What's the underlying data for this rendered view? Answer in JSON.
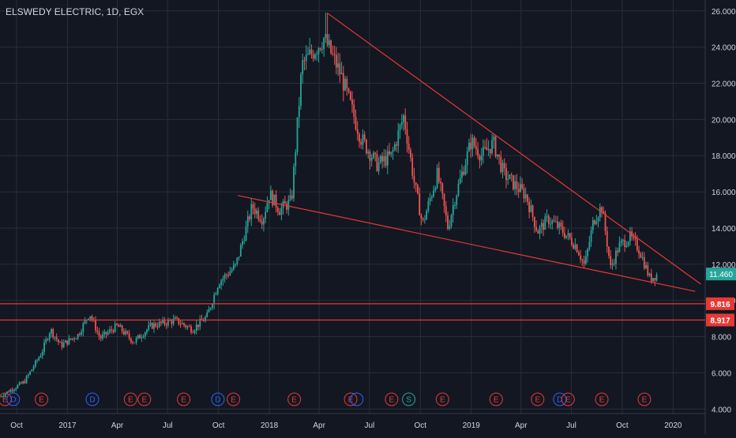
{
  "header": {
    "title": "ELSWEDY ELECTRIC, 1D, EGX"
  },
  "colors": {
    "background": "#131722",
    "grid": "#2a2e39",
    "axis_text": "#d1d4dc",
    "up": "#26a69a",
    "down": "#ef5350",
    "trendline": "#e53935",
    "price_badge": "#26a69a",
    "level_badge": "#e53935"
  },
  "chart_data": {
    "type": "candlestick",
    "x_start": "2016-09-01",
    "x_end": "2020-02-28",
    "ylim": [
      3.75,
      26.6
    ],
    "y_scale": "linear",
    "yticks": [
      "4.000",
      "6.000",
      "8.000",
      "10.000",
      "12.000",
      "14.000",
      "16.000",
      "18.000",
      "20.000",
      "22.000",
      "24.000",
      "26.000"
    ],
    "ytick_values": [
      4,
      6,
      8,
      10,
      12,
      14,
      16,
      18,
      20,
      22,
      24,
      26
    ],
    "xticks": [
      {
        "date": "2016-10-01",
        "label": "Oct"
      },
      {
        "date": "2017-01-01",
        "label": "2017"
      },
      {
        "date": "2017-04-01",
        "label": "Apr"
      },
      {
        "date": "2017-07-01",
        "label": "Jul"
      },
      {
        "date": "2017-10-01",
        "label": "Oct"
      },
      {
        "date": "2018-01-01",
        "label": "2018"
      },
      {
        "date": "2018-04-01",
        "label": "Apr"
      },
      {
        "date": "2018-07-01",
        "label": "Jul"
      },
      {
        "date": "2018-10-01",
        "label": "Oct"
      },
      {
        "date": "2019-01-01",
        "label": "2019"
      },
      {
        "date": "2019-04-01",
        "label": "Apr"
      },
      {
        "date": "2019-07-01",
        "label": "Jul"
      },
      {
        "date": "2019-10-01",
        "label": "Oct"
      },
      {
        "date": "2020-01-01",
        "label": "2020"
      }
    ],
    "price_path": [
      [
        "2016-09-01",
        4.7
      ],
      [
        "2016-10-15",
        5.5
      ],
      [
        "2016-11-15",
        7.1
      ],
      [
        "2016-12-01",
        8.4
      ],
      [
        "2016-12-20",
        7.5
      ],
      [
        "2017-01-20",
        8.1
      ],
      [
        "2017-02-10",
        9.3
      ],
      [
        "2017-03-01",
        7.9
      ],
      [
        "2017-04-01",
        8.6
      ],
      [
        "2017-05-01",
        7.7
      ],
      [
        "2017-06-01",
        8.6
      ],
      [
        "2017-07-15",
        8.9
      ],
      [
        "2017-08-15",
        8.4
      ],
      [
        "2017-09-10",
        9.1
      ],
      [
        "2017-10-01",
        11.0
      ],
      [
        "2017-11-01",
        11.9
      ],
      [
        "2017-12-01",
        15.2
      ],
      [
        "2017-12-20",
        14.5
      ],
      [
        "2018-01-01",
        15.9
      ],
      [
        "2018-01-20",
        15.0
      ],
      [
        "2018-02-10",
        15.5
      ],
      [
        "2018-03-01",
        23.0
      ],
      [
        "2018-04-10",
        24.5
      ],
      [
        "2018-05-10",
        22.5
      ],
      [
        "2018-06-15",
        19.0
      ],
      [
        "2018-07-15",
        17.5
      ],
      [
        "2018-08-10",
        18.0
      ],
      [
        "2018-09-01",
        20.2
      ],
      [
        "2018-09-20",
        16.5
      ],
      [
        "2018-10-05",
        14.2
      ],
      [
        "2018-11-01",
        17.0
      ],
      [
        "2018-11-20",
        14.0
      ],
      [
        "2018-12-01",
        15.5
      ],
      [
        "2019-01-01",
        18.8
      ],
      [
        "2019-01-20",
        18.0
      ],
      [
        "2019-02-10",
        18.7
      ],
      [
        "2019-03-01",
        17.0
      ],
      [
        "2019-03-20",
        16.4
      ],
      [
        "2019-04-10",
        15.8
      ],
      [
        "2019-05-01",
        13.8
      ],
      [
        "2019-05-20",
        14.5
      ],
      [
        "2019-06-10",
        14.0
      ],
      [
        "2019-07-10",
        13.0
      ],
      [
        "2019-07-25",
        11.9
      ],
      [
        "2019-08-10",
        14.4
      ],
      [
        "2019-08-25",
        15.2
      ],
      [
        "2019-09-10",
        11.8
      ],
      [
        "2019-09-25",
        13.0
      ],
      [
        "2019-10-15",
        13.5
      ],
      [
        "2019-11-01",
        12.8
      ],
      [
        "2019-11-20",
        11.2
      ],
      [
        "2019-12-05",
        11.46
      ]
    ],
    "peak": {
      "date": "2018-04-15",
      "value": 25.9
    },
    "trendlines": [
      {
        "from": [
          "2018-04-17",
          25.85
        ],
        "to": [
          "2020-02-20",
          10.9
        ]
      },
      {
        "from": [
          "2017-11-05",
          15.8
        ],
        "to": [
          "2020-02-10",
          10.5
        ]
      }
    ],
    "horizontal_levels": [
      {
        "value": 9.816,
        "label": "9.816"
      },
      {
        "value": 8.917,
        "label": "8.917"
      }
    ],
    "last_price": {
      "value": 11.46,
      "label": "11.460"
    },
    "events": [
      {
        "date": "2016-09-10",
        "label": "E",
        "kind": "earnings"
      },
      {
        "date": "2016-09-25",
        "label": "D",
        "kind": "dividend"
      },
      {
        "date": "2016-11-15",
        "label": "E",
        "kind": "earnings"
      },
      {
        "date": "2017-02-15",
        "label": "D",
        "kind": "dividend"
      },
      {
        "date": "2017-04-25",
        "label": "E",
        "kind": "earnings"
      },
      {
        "date": "2017-05-20",
        "label": "E",
        "kind": "earnings"
      },
      {
        "date": "2017-07-30",
        "label": "E",
        "kind": "earnings"
      },
      {
        "date": "2017-09-30",
        "label": "D",
        "kind": "dividend"
      },
      {
        "date": "2017-10-28",
        "label": "E",
        "kind": "earnings"
      },
      {
        "date": "2018-02-15",
        "label": "E",
        "kind": "earnings"
      },
      {
        "date": "2018-05-28",
        "label": "E",
        "kind": "earnings"
      },
      {
        "date": "2018-06-08",
        "label": "",
        "kind": "dividend"
      },
      {
        "date": "2018-08-10",
        "label": "E",
        "kind": "earnings"
      },
      {
        "date": "2018-09-10",
        "label": "S",
        "kind": "split"
      },
      {
        "date": "2018-11-10",
        "label": "E",
        "kind": "earnings"
      },
      {
        "date": "2019-02-15",
        "label": "E",
        "kind": "earnings"
      },
      {
        "date": "2019-05-01",
        "label": "E",
        "kind": "earnings"
      },
      {
        "date": "2019-06-10",
        "label": "D",
        "kind": "dividend"
      },
      {
        "date": "2019-06-25",
        "label": "E",
        "kind": "earnings"
      },
      {
        "date": "2019-08-25",
        "label": "E",
        "kind": "earnings"
      },
      {
        "date": "2019-11-10",
        "label": "E",
        "kind": "earnings"
      }
    ]
  }
}
